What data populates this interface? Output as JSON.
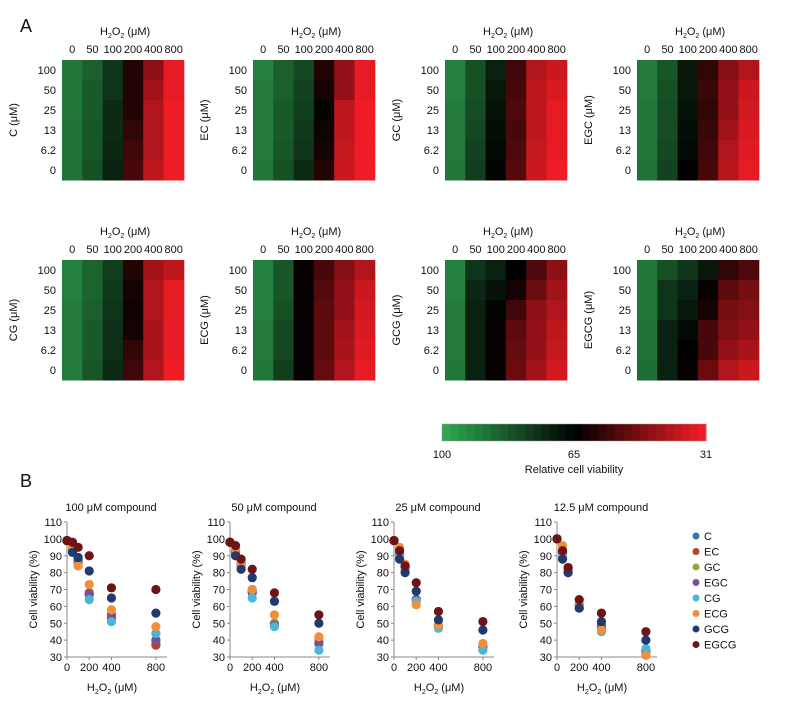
{
  "figure": {
    "panel_a_label": "A",
    "panel_b_label": "B"
  },
  "heatmap_common": {
    "x_axis_title": "H2O2 (μM)",
    "x_axis_title_parts": [
      "H",
      "2",
      "O",
      "2",
      " (μM)"
    ],
    "x_categories": [
      "0",
      "50",
      "100",
      "200",
      "400",
      "800"
    ],
    "y_categories": [
      "100",
      "50",
      "25",
      "13",
      "6.2",
      "0"
    ]
  },
  "colorbar": {
    "labels": [
      "100",
      "65",
      "31"
    ],
    "title": "Relative cell viability",
    "colors": {
      "high": "#2ea64f",
      "mid": "#000000",
      "low": "#ee1c24"
    }
  },
  "scatter_common": {
    "xlabel": "H2O2 (μM)",
    "xlabel_parts": [
      "H",
      "2",
      "O",
      "2",
      " (μM)"
    ],
    "ylabel": "Cell viability (%)",
    "x_ticks": [
      "0",
      "200",
      "400",
      "800"
    ],
    "y_ticks": [
      "30",
      "40",
      "50",
      "60",
      "70",
      "80",
      "90",
      "100",
      "110"
    ]
  },
  "legend": {
    "placement": "right",
    "items": [
      {
        "name": "C",
        "color": "#2e78b7"
      },
      {
        "name": "EC",
        "color": "#b5422a"
      },
      {
        "name": "GC",
        "color": "#8aab3a"
      },
      {
        "name": "EGC",
        "color": "#7a4f9a"
      },
      {
        "name": "CG",
        "color": "#4bb6d6"
      },
      {
        "name": "ECG",
        "color": "#f18f3b"
      },
      {
        "name": "GCG",
        "color": "#1f3b6e"
      },
      {
        "name": "EGCG",
        "color": "#6e1414"
      }
    ]
  },
  "chart_data": [
    {
      "type": "heatmap",
      "compound": "C",
      "ylabel": "C (μM)",
      "xlabel": "H2O2 (μM)",
      "x": [
        "0",
        "50",
        "100",
        "200",
        "400",
        "800"
      ],
      "y": [
        "100",
        "50",
        "25",
        "13",
        "6.2",
        "0"
      ],
      "values": [
        [
          90,
          85,
          76,
          60,
          45,
          32
        ],
        [
          90,
          84,
          76,
          60,
          42,
          32
        ],
        [
          90,
          84,
          74,
          60,
          40,
          31
        ],
        [
          89,
          83,
          74,
          58,
          40,
          31
        ],
        [
          89,
          83,
          73,
          56,
          40,
          31
        ],
        [
          89,
          82,
          72,
          55,
          38,
          31
        ]
      ]
    },
    {
      "type": "heatmap",
      "compound": "EC",
      "ylabel": "EC (μM)",
      "xlabel": "H2O2 (μM)",
      "x": [
        "0",
        "50",
        "100",
        "200",
        "400",
        "800"
      ],
      "y": [
        "100",
        "50",
        "25",
        "13",
        "6.2",
        "0"
      ],
      "values": [
        [
          92,
          85,
          80,
          60,
          44,
          32
        ],
        [
          91,
          85,
          79,
          62,
          44,
          32
        ],
        [
          91,
          84,
          78,
          66,
          38,
          31
        ],
        [
          91,
          84,
          77,
          63,
          38,
          31
        ],
        [
          91,
          83,
          76,
          62,
          37,
          31
        ],
        [
          90,
          82,
          74,
          60,
          36,
          31
        ]
      ]
    },
    {
      "type": "heatmap",
      "compound": "GC",
      "ylabel": "GC (μM)",
      "xlabel": "H2O2 (μM)",
      "x": [
        "0",
        "50",
        "100",
        "200",
        "400",
        "800"
      ],
      "y": [
        "100",
        "50",
        "25",
        "13",
        "6.2",
        "0"
      ],
      "values": [
        [
          92,
          82,
          72,
          56,
          40,
          36
        ],
        [
          92,
          82,
          70,
          55,
          38,
          34
        ],
        [
          91,
          81,
          69,
          54,
          38,
          32
        ],
        [
          91,
          80,
          68,
          55,
          38,
          32
        ],
        [
          91,
          79,
          67,
          54,
          37,
          32
        ],
        [
          90,
          78,
          66,
          53,
          36,
          31
        ]
      ]
    },
    {
      "type": "heatmap",
      "compound": "EGC",
      "ylabel": "EGC (μM)",
      "xlabel": "H2O2 (μM)",
      "x": [
        "0",
        "50",
        "100",
        "200",
        "400",
        "800"
      ],
      "y": [
        "100",
        "50",
        "25",
        "13",
        "6.2",
        "0"
      ],
      "values": [
        [
          91,
          83,
          70,
          58,
          46,
          40
        ],
        [
          91,
          82,
          70,
          57,
          44,
          36
        ],
        [
          90,
          81,
          69,
          58,
          44,
          35
        ],
        [
          90,
          81,
          68,
          57,
          42,
          34
        ],
        [
          90,
          80,
          67,
          56,
          40,
          33
        ],
        [
          89,
          79,
          65,
          55,
          39,
          32
        ]
      ]
    },
    {
      "type": "heatmap",
      "compound": "CG",
      "ylabel": "CG (μM)",
      "xlabel": "H2O2 (μM)",
      "x": [
        "0",
        "50",
        "100",
        "200",
        "400",
        "800"
      ],
      "y": [
        "100",
        "50",
        "25",
        "13",
        "6.2",
        "0"
      ],
      "values": [
        [
          92,
          86,
          78,
          60,
          42,
          38
        ],
        [
          92,
          86,
          77,
          62,
          40,
          32
        ],
        [
          91,
          85,
          76,
          63,
          40,
          32
        ],
        [
          91,
          84,
          75,
          62,
          41,
          32
        ],
        [
          91,
          84,
          75,
          58,
          41,
          32
        ],
        [
          91,
          83,
          74,
          56,
          40,
          31
        ]
      ]
    },
    {
      "type": "heatmap",
      "compound": "ECG",
      "ylabel": "ECG (μM)",
      "xlabel": "H2O2 (μM)",
      "x": [
        "0",
        "50",
        "100",
        "200",
        "400",
        "800"
      ],
      "y": [
        "100",
        "50",
        "25",
        "13",
        "6.2",
        "0"
      ],
      "values": [
        [
          92,
          83,
          64,
          55,
          46,
          40
        ],
        [
          92,
          83,
          64,
          53,
          44,
          36
        ],
        [
          92,
          82,
          64,
          52,
          44,
          35
        ],
        [
          91,
          80,
          64,
          52,
          42,
          34
        ],
        [
          91,
          80,
          64,
          52,
          41,
          33
        ],
        [
          90,
          78,
          64,
          51,
          40,
          32
        ]
      ]
    },
    {
      "type": "heatmap",
      "compound": "GCG",
      "ylabel": "GCG (μM)",
      "xlabel": "H2O2 (μM)",
      "x": [
        "0",
        "50",
        "100",
        "200",
        "400",
        "800"
      ],
      "y": [
        "100",
        "50",
        "25",
        "13",
        "6.2",
        "0"
      ],
      "values": [
        [
          92,
          76,
          72,
          65,
          54,
          45
        ],
        [
          92,
          73,
          69,
          62,
          50,
          42
        ],
        [
          91,
          72,
          66,
          56,
          45,
          40
        ],
        [
          91,
          72,
          64,
          52,
          44,
          38
        ],
        [
          91,
          72,
          64,
          51,
          44,
          37
        ],
        [
          90,
          72,
          64,
          50,
          42,
          35
        ]
      ]
    },
    {
      "type": "heatmap",
      "compound": "EGCG",
      "ylabel": "EGCG (μM)",
      "xlabel": "H2O2 (μM)",
      "x": [
        "0",
        "50",
        "100",
        "200",
        "400",
        "800"
      ],
      "y": [
        "100",
        "50",
        "25",
        "13",
        "6.2",
        "0"
      ],
      "values": [
        [
          90,
          82,
          76,
          70,
          58,
          54
        ],
        [
          90,
          76,
          72,
          64,
          52,
          48
        ],
        [
          90,
          76,
          70,
          62,
          48,
          46
        ],
        [
          89,
          72,
          67,
          55,
          47,
          44
        ],
        [
          89,
          72,
          65,
          55,
          44,
          41
        ],
        [
          88,
          72,
          64,
          50,
          40,
          36
        ]
      ]
    },
    {
      "type": "scatter",
      "title": "100 μM compound",
      "xlabel": "H2O2 (μM)",
      "ylabel": "Cell viability (%)",
      "x": [
        0,
        50,
        100,
        200,
        400,
        800
      ],
      "xlim": [
        0,
        900
      ],
      "ylim": [
        30,
        110
      ],
      "series": [
        {
          "name": "C",
          "values": [
            99,
            93,
            87,
            68,
            53,
            38
          ]
        },
        {
          "name": "EC",
          "values": [
            99,
            95,
            88,
            68,
            55,
            37
          ]
        },
        {
          "name": "GC",
          "values": [
            99,
            93,
            86,
            67,
            53,
            40
          ]
        },
        {
          "name": "EGC",
          "values": [
            99,
            93,
            86,
            67,
            53,
            40
          ]
        },
        {
          "name": "CG",
          "values": [
            99,
            92,
            84,
            64,
            51,
            44
          ]
        },
        {
          "name": "ECG",
          "values": [
            99,
            95,
            84,
            73,
            58,
            48
          ]
        },
        {
          "name": "GCG",
          "values": [
            99,
            92,
            89,
            81,
            65,
            56
          ]
        },
        {
          "name": "EGCG",
          "values": [
            99,
            98,
            95,
            90,
            71,
            70
          ]
        }
      ]
    },
    {
      "type": "scatter",
      "title": "50 μM compound",
      "xlabel": "H2O2 (μM)",
      "ylabel": "Cell viability (%)",
      "x": [
        0,
        50,
        100,
        200,
        400,
        800
      ],
      "xlim": [
        0,
        900
      ],
      "ylim": [
        30,
        110
      ],
      "series": [
        {
          "name": "C",
          "values": [
            98,
            91,
            84,
            69,
            49,
            39
          ]
        },
        {
          "name": "EC",
          "values": [
            98,
            93,
            86,
            70,
            50,
            38
          ]
        },
        {
          "name": "GC",
          "values": [
            98,
            92,
            85,
            68,
            50,
            40
          ]
        },
        {
          "name": "EGC",
          "values": [
            98,
            92,
            85,
            68,
            49,
            38
          ]
        },
        {
          "name": "CG",
          "values": [
            98,
            90,
            83,
            65,
            48,
            34
          ]
        },
        {
          "name": "ECG",
          "values": [
            98,
            94,
            86,
            70,
            55,
            42
          ]
        },
        {
          "name": "GCG",
          "values": [
            98,
            90,
            82,
            77,
            63,
            50
          ]
        },
        {
          "name": "EGCG",
          "values": [
            98,
            96,
            88,
            82,
            68,
            55
          ]
        }
      ]
    },
    {
      "type": "scatter",
      "title": "25 μM compound",
      "xlabel": "H2O2 (μM)",
      "ylabel": "Cell viability (%)",
      "x": [
        0,
        50,
        100,
        200,
        400,
        800
      ],
      "xlim": [
        0,
        900
      ],
      "ylim": [
        30,
        110
      ],
      "series": [
        {
          "name": "C",
          "values": [
            99,
            90,
            82,
            64,
            48,
            36
          ]
        },
        {
          "name": "EC",
          "values": [
            99,
            91,
            83,
            64,
            49,
            36
          ]
        },
        {
          "name": "GC",
          "values": [
            99,
            91,
            83,
            64,
            48,
            36
          ]
        },
        {
          "name": "EGC",
          "values": [
            99,
            91,
            83,
            64,
            48,
            36
          ]
        },
        {
          "name": "CG",
          "values": [
            99,
            90,
            82,
            63,
            47,
            34
          ]
        },
        {
          "name": "ECG",
          "values": [
            99,
            95,
            85,
            61,
            49,
            38
          ]
        },
        {
          "name": "GCG",
          "values": [
            99,
            88,
            80,
            69,
            52,
            46
          ]
        },
        {
          "name": "EGCG",
          "values": [
            99,
            93,
            84,
            74,
            57,
            51
          ]
        }
      ]
    },
    {
      "type": "scatter",
      "title": "12.5 μM compound",
      "xlabel": "H2O2 (μM)",
      "ylabel": "Cell viability (%)",
      "x": [
        0,
        50,
        100,
        200,
        400,
        800
      ],
      "xlim": [
        0,
        900
      ],
      "ylim": [
        30,
        110
      ],
      "series": [
        {
          "name": "C",
          "values": [
            100,
            89,
            81,
            59,
            47,
            33
          ]
        },
        {
          "name": "EC",
          "values": [
            100,
            92,
            83,
            61,
            49,
            34
          ]
        },
        {
          "name": "GC",
          "values": [
            100,
            92,
            82,
            61,
            48,
            34
          ]
        },
        {
          "name": "EGC",
          "values": [
            100,
            92,
            82,
            61,
            48,
            34
          ]
        },
        {
          "name": "CG",
          "values": [
            100,
            89,
            80,
            59,
            45,
            35
          ]
        },
        {
          "name": "ECG",
          "values": [
            100,
            96,
            82,
            61,
            46,
            31
          ]
        },
        {
          "name": "GCG",
          "values": [
            100,
            88,
            80,
            59,
            51,
            40
          ]
        },
        {
          "name": "EGCG",
          "values": [
            100,
            93,
            83,
            64,
            56,
            45
          ]
        }
      ]
    }
  ]
}
